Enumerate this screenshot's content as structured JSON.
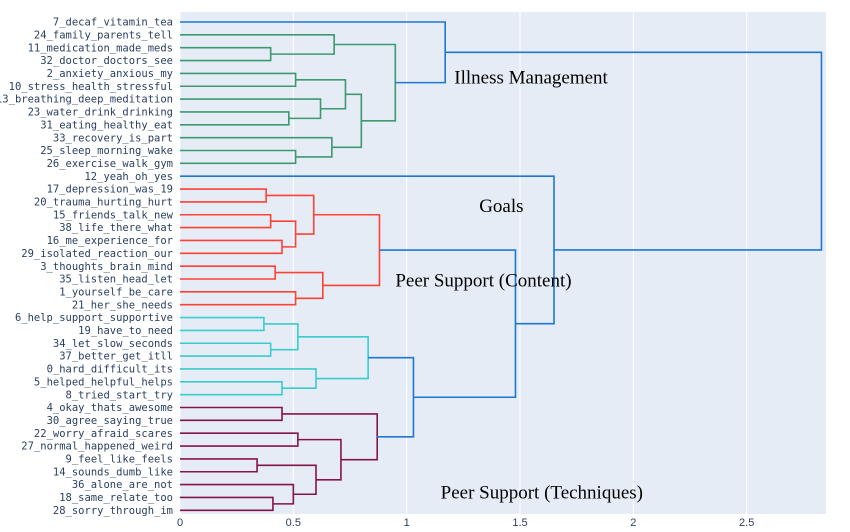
{
  "chart_data": {
    "type": "dendrogram",
    "title": "",
    "xlabel": "",
    "ylabel": "",
    "orientation": "horizontal",
    "xlim": [
      0,
      2.85
    ],
    "x_ticks": [
      0,
      0.5,
      1,
      1.5,
      2,
      2.5
    ],
    "x_tick_labels": [
      "0",
      "0.5",
      "1",
      "1.5",
      "2",
      "2.5"
    ],
    "grid": true,
    "background": "#e5ecf6",
    "colors": {
      "green": "#3d9970",
      "red": "#ff4136",
      "cyan": "#39cccc",
      "maroon": "#85144b",
      "blue": "#1f77d4"
    },
    "leaves": [
      "7_decaf_vitamin_tea",
      "24_family_parents_tell",
      "11_medication_made_meds",
      "32_doctor_doctors_see",
      "2_anxiety_anxious_my",
      "10_stress_health_stressful",
      "13_breathing_deep_meditation",
      "23_water_drink_drinking",
      "31_eating_healthy_eat",
      "33_recovery_is_part",
      "25_sleep_morning_wake",
      "26_exercise_walk_gym",
      "12_yeah_oh_yes",
      "17_depression_was_19",
      "20_trauma_hurting_hurt",
      "15_friends_talk_new",
      "38_life_there_what",
      "16_me_experience_for",
      "29_isolated_reaction_our",
      "3_thoughts_brain_mind",
      "35_listen_head_let",
      "1_yourself_be_care",
      "21_her_she_needs",
      "6_help_support_supportive",
      "19_have_to_need",
      "34_let_slow_seconds",
      "37_better_get_itll",
      "0_hard_difficult_its",
      "5_helped_helpful_helps",
      "8_tried_start_try",
      "4_okay_thats_awesome",
      "30_agree_saying_true",
      "22_worry_afraid_scares",
      "27_normal_happened_weird",
      "9_feel_like_feels",
      "14_sounds_dumb_like",
      "36_alone_are_not",
      "18_same_relate_too",
      "28_sorry_through_im"
    ],
    "merges": [
      {
        "a": 2,
        "b": 3,
        "h": 0.4,
        "c": "green"
      },
      {
        "a": 1,
        "b": "m0",
        "h": 0.68,
        "c": "green"
      },
      {
        "a": 4,
        "b": 5,
        "h": 0.51,
        "c": "green"
      },
      {
        "a": 7,
        "b": 8,
        "h": 0.48,
        "c": "green"
      },
      {
        "a": 6,
        "b": "m3",
        "h": 0.62,
        "c": "green"
      },
      {
        "a": "m2",
        "b": "m4",
        "h": 0.73,
        "c": "green"
      },
      {
        "a": 10,
        "b": 11,
        "h": 0.51,
        "c": "green"
      },
      {
        "a": 9,
        "b": "m6",
        "h": 0.67,
        "c": "green"
      },
      {
        "a": "m5",
        "b": "m7",
        "h": 0.8,
        "c": "green"
      },
      {
        "a": "m1",
        "b": "m8",
        "h": 0.95,
        "c": "green"
      },
      {
        "a": 0,
        "b": "m9",
        "h": 1.17,
        "c": "blue"
      },
      {
        "a": 13,
        "b": 14,
        "h": 0.38,
        "c": "red"
      },
      {
        "a": 15,
        "b": 16,
        "h": 0.4,
        "c": "red"
      },
      {
        "a": 17,
        "b": 18,
        "h": 0.45,
        "c": "red"
      },
      {
        "a": "m12",
        "b": "m13",
        "h": 0.51,
        "c": "red"
      },
      {
        "a": "m11",
        "b": "m14",
        "h": 0.59,
        "c": "red"
      },
      {
        "a": 19,
        "b": 20,
        "h": 0.42,
        "c": "red"
      },
      {
        "a": 21,
        "b": 22,
        "h": 0.51,
        "c": "red"
      },
      {
        "a": "m16",
        "b": "m17",
        "h": 0.63,
        "c": "red"
      },
      {
        "a": "m15",
        "b": "m18",
        "h": 0.88,
        "c": "red"
      },
      {
        "a": 23,
        "b": 24,
        "h": 0.37,
        "c": "cyan"
      },
      {
        "a": 25,
        "b": 26,
        "h": 0.4,
        "c": "cyan"
      },
      {
        "a": "m20",
        "b": "m21",
        "h": 0.52,
        "c": "cyan"
      },
      {
        "a": 28,
        "b": 29,
        "h": 0.45,
        "c": "cyan"
      },
      {
        "a": 27,
        "b": "m23",
        "h": 0.6,
        "c": "cyan"
      },
      {
        "a": "m22",
        "b": "m24",
        "h": 0.83,
        "c": "cyan"
      },
      {
        "a": 30,
        "b": 31,
        "h": 0.45,
        "c": "maroon"
      },
      {
        "a": 32,
        "b": 33,
        "h": 0.52,
        "c": "maroon"
      },
      {
        "a": 34,
        "b": 35,
        "h": 0.34,
        "c": "maroon"
      },
      {
        "a": 37,
        "b": 38,
        "h": 0.41,
        "c": "maroon"
      },
      {
        "a": 36,
        "b": "m29",
        "h": 0.5,
        "c": "maroon"
      },
      {
        "a": "m28",
        "b": "m30",
        "h": 0.6,
        "c": "maroon"
      },
      {
        "a": "m27",
        "b": "m31",
        "h": 0.71,
        "c": "maroon"
      },
      {
        "a": "m26",
        "b": "m32",
        "h": 0.87,
        "c": "maroon"
      },
      {
        "a": "m25",
        "b": "m33",
        "h": 1.03,
        "c": "blue"
      },
      {
        "a": "m19",
        "b": "m34",
        "h": 1.48,
        "c": "blue"
      },
      {
        "a": 12,
        "b": "m35",
        "h": 1.65,
        "c": "blue"
      },
      {
        "a": "m10",
        "b": "m36",
        "h": 2.83,
        "c": "blue"
      }
    ],
    "annotations": [
      {
        "text": "Illness Management",
        "x": 1.21,
        "leaf": 4.3
      },
      {
        "text": "Goals",
        "x": 1.32,
        "leaf": 14.3
      },
      {
        "text": "Peer Support (Content)",
        "x": 0.95,
        "leaf": 20.1
      },
      {
        "text": "Peer Support (Techniques)",
        "x": 1.15,
        "leaf": 36.6
      }
    ]
  }
}
